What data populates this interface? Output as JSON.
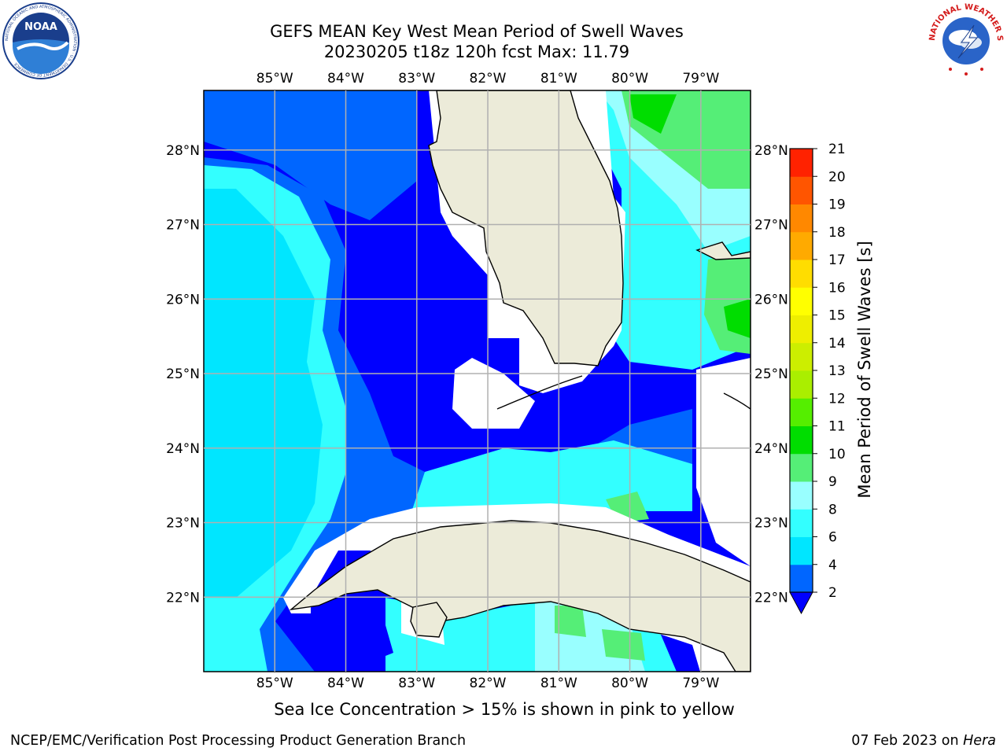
{
  "title_line1": "GEFS MEAN Key West Mean Period of Swell Waves",
  "title_line2": "20230205 t18z 120h fcst   Max: 11.79",
  "map": {
    "lon_labels": [
      "85°W",
      "84°W",
      "83°W",
      "82°W",
      "81°W",
      "80°W",
      "79°W"
    ],
    "lat_labels": [
      "28°N",
      "27°N",
      "26°N",
      "25°N",
      "24°N",
      "23°N",
      "22°N"
    ],
    "lon_values": [
      -85,
      -84,
      -83,
      -82,
      -81,
      -80,
      -79
    ],
    "lat_values": [
      28,
      27,
      26,
      25,
      24,
      23,
      22
    ],
    "lon_range": [
      -86.0,
      -78.3
    ],
    "lat_range": [
      21.0,
      28.8
    ]
  },
  "colorbar": {
    "label": "Mean Period of Swell Waves [s]",
    "ticks": [
      "2",
      "4",
      "6",
      "8",
      "9",
      "10",
      "11",
      "12",
      "13",
      "14",
      "15",
      "16",
      "17",
      "18",
      "19",
      "20",
      "21"
    ],
    "colors": [
      "#0066ff",
      "#00e6ff",
      "#33ffff",
      "#99ffff",
      "#55ee77",
      "#00dd00",
      "#55ee00",
      "#aaee00",
      "#ccee00",
      "#eeee00",
      "#ffff00",
      "#ffdd00",
      "#ffaa00",
      "#ff8800",
      "#ff5500",
      "#ff2200"
    ],
    "under_color": "#0000ff"
  },
  "logos": {
    "left_icon": "noaa-logo",
    "right_icon": "nws-logo",
    "left_text": "NOAA",
    "left_ring_text": "NATIONAL OCEANIC AND ATMOSPHERIC ADMINISTRATION · U.S. DEPARTMENT OF COMMERCE",
    "right_ring_text": "NATIONAL WEATHER SERVICE"
  },
  "footnote": "Sea Ice Concentration > 15% is shown in pink to yellow",
  "credit": "NCEP/EMC/Verification Post Processing Product Generation Branch",
  "date_prefix": "07 Feb 2023 on ",
  "date_machine": "Hera"
}
